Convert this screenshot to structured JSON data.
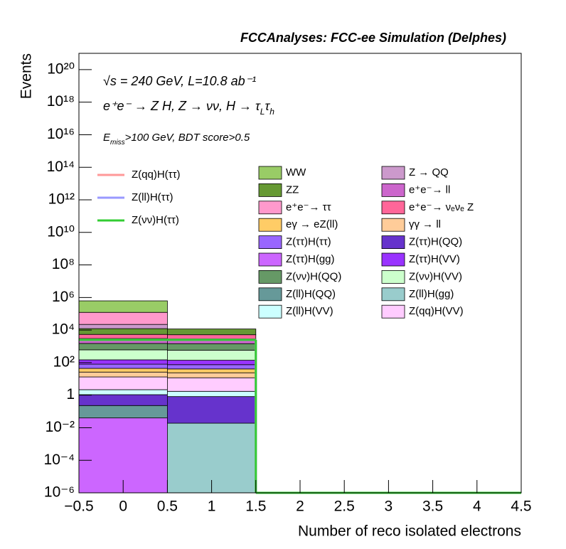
{
  "chart_data": {
    "type": "stacked_histogram",
    "title": "FCCAnalyses: FCC-ee Simulation (Delphes)",
    "annotations": [
      [
        "√s = 240 GeV, L=10.8 ab⁻¹"
      ],
      [
        "e⁺e⁻ → Z H, Z → νν, H → τ",
        "L",
        "τ",
        "h"
      ],
      [
        "E",
        "miss",
        ">100 GeV, BDT score>0.5"
      ]
    ],
    "x_label": "Number of reco isolated electrons",
    "y_label": "Events",
    "log_y": true,
    "bins": [
      -0.5,
      0.5,
      1.5,
      2.5,
      3.5,
      4.5
    ],
    "xlim": [
      -0.5,
      4.5
    ],
    "xticks": [
      {
        "value": -0.5,
        "label": "−0.5"
      },
      0,
      0.5,
      1,
      1.5,
      2,
      2.5,
      3,
      3.5,
      4,
      4.5
    ],
    "ylim": [
      1e-06,
      1e+21
    ],
    "yticks": [
      {
        "value": 1e-06,
        "label": "10⁻⁶"
      },
      {
        "value": 0.0001,
        "label": "10⁻⁴"
      },
      {
        "value": 0.01,
        "label": "10⁻²"
      },
      1,
      {
        "value": 100,
        "label": "10²"
      },
      {
        "value": 10000,
        "label": "10⁴"
      },
      {
        "value": 1000000.0,
        "label": "10⁶"
      },
      {
        "value": 100000000.0,
        "label": "10⁸"
      },
      {
        "value": 10000000000.0,
        "label": "10¹⁰"
      },
      {
        "value": 1000000000000.0,
        "label": "10¹²"
      },
      {
        "value": 100000000000000.0,
        "label": "10¹⁴"
      },
      {
        "value": 1e+16,
        "label": "10¹⁶"
      },
      {
        "value": 1e+18,
        "label": "10¹⁸"
      },
      {
        "value": 1e+20,
        "label": "10²⁰"
      }
    ],
    "series": [
      {
        "name": "WW",
        "color": "#99cc66",
        "values": [
          500000,
          0,
          0,
          0,
          0
        ]
      },
      {
        "name": "Z → QQ",
        "color": "#cc99cc",
        "values": [
          10000,
          0,
          0,
          0,
          0
        ]
      },
      {
        "name": "ZZ",
        "color": "#669933",
        "values": [
          6800,
          6500,
          0,
          0,
          0
        ]
      },
      {
        "name": "e⁺e⁻→ ll",
        "color": "#cc66cc",
        "values": [
          1500,
          1400,
          0,
          0,
          0
        ]
      },
      {
        "name": "e⁺e⁻→ ττ",
        "color": "#ff99cc",
        "values": [
          100000,
          0,
          0,
          0,
          0
        ]
      },
      {
        "name": "e⁺e⁻→ νₑνₑ Z",
        "color": "#ff6699",
        "values": [
          2400,
          2300,
          0,
          0,
          0
        ]
      },
      {
        "name": "eγ → eZ(ll)",
        "color": "#ffcc66",
        "values": [
          18,
          17,
          0,
          0,
          0
        ]
      },
      {
        "name": "γγ → ll",
        "color": "#ffcc99",
        "values": [
          13,
          12,
          0,
          0,
          0
        ]
      },
      {
        "name": "Z(ττ)H(ττ)",
        "color": "#9966ff",
        "values": [
          36,
          34,
          0,
          0,
          0
        ]
      },
      {
        "name": "Z(ττ)H(QQ)",
        "color": "#6633cc",
        "values": [
          0.84,
          0.8,
          0,
          0,
          0
        ]
      },
      {
        "name": "Z(ττ)H(gg)",
        "color": "#cc66ff",
        "values": [
          0.04,
          0,
          0,
          0,
          0
        ]
      },
      {
        "name": "Z(ττ)H(VV)",
        "color": "#9933ff",
        "values": [
          68,
          65,
          0,
          0,
          0
        ]
      },
      {
        "name": "Z(νν)H(QQ)",
        "color": "#669966",
        "values": [
          900,
          880,
          0,
          0,
          0
        ]
      },
      {
        "name": "Z(νν)H(VV)",
        "color": "#ccffcc",
        "values": [
          460,
          440,
          0,
          0,
          0
        ]
      },
      {
        "name": "Z(ll)H(QQ)",
        "color": "#669999",
        "values": [
          0.19,
          0,
          0,
          0,
          0
        ]
      },
      {
        "name": "Z(ll)H(gg)",
        "color": "#99cccc",
        "values": [
          0,
          0.019,
          0,
          0,
          0
        ]
      },
      {
        "name": "Z(ll)H(VV)",
        "color": "#ccffff",
        "values": [
          1.1,
          0.9,
          0,
          0,
          0
        ]
      },
      {
        "name": "Z(qq)H(VV)",
        "color": "#ffccff",
        "values": [
          11,
          10,
          0,
          0,
          0
        ]
      }
    ],
    "lines": [
      {
        "name": "Z(qq)H(ττ)",
        "color": "#ff9999",
        "values": [
          2500,
          2500,
          0,
          0,
          0
        ]
      },
      {
        "name": "Z(ll)H(ττ)",
        "color": "#9999ff",
        "values": [
          2500,
          2500,
          0,
          0,
          0
        ]
      },
      {
        "name": "Z(νν)H(ττ)",
        "color": "#33cc33",
        "values": [
          2500,
          2500,
          0,
          0,
          0
        ]
      }
    ]
  }
}
